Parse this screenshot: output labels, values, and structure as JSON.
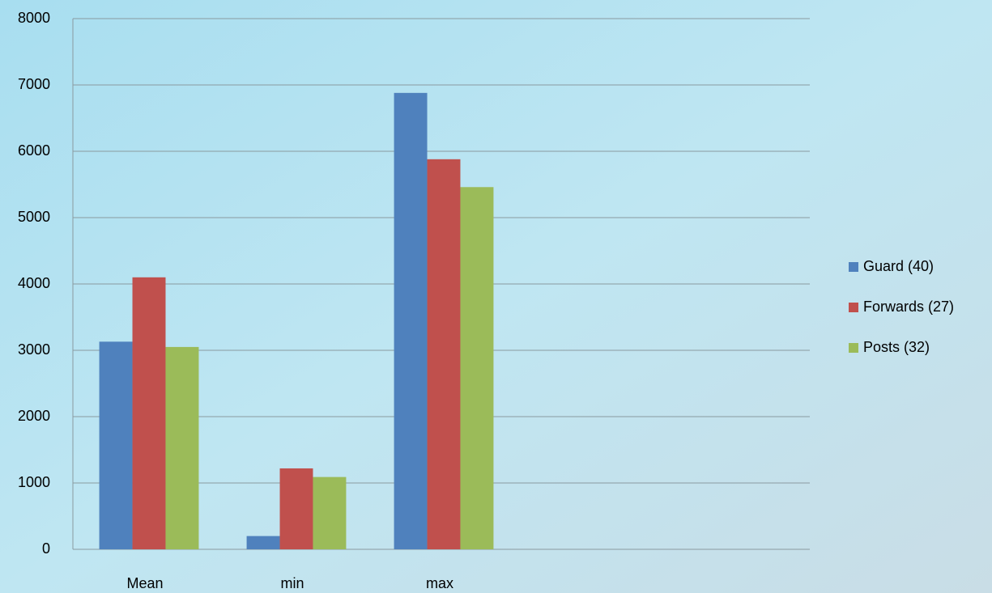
{
  "chart_data": {
    "type": "bar",
    "categories": [
      "Mean",
      "min",
      "max",
      null,
      null
    ],
    "series": [
      {
        "name": "Guard (40)",
        "color": "#4f81bd",
        "values": [
          3130,
          200,
          6880,
          null,
          null
        ]
      },
      {
        "name": "Forwards (27)",
        "color": "#c0504d",
        "values": [
          4100,
          1220,
          5880,
          null,
          null
        ]
      },
      {
        "name": "Posts (32)",
        "color": "#9bbb59",
        "values": [
          3050,
          1090,
          5460,
          null,
          null
        ]
      }
    ],
    "ylim": [
      0,
      8000
    ],
    "yticks": [
      0,
      1000,
      2000,
      3000,
      4000,
      5000,
      6000,
      7000,
      8000
    ],
    "grid": true,
    "legend": "right"
  }
}
